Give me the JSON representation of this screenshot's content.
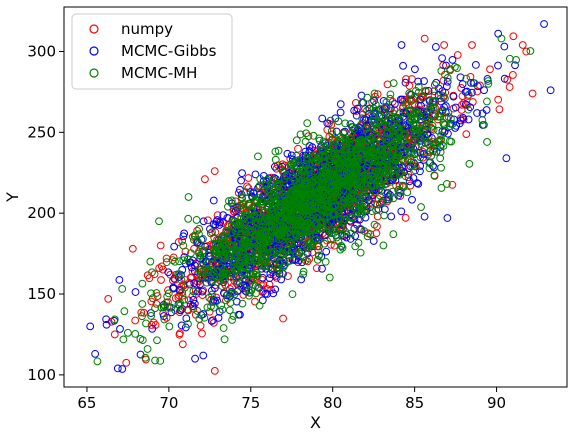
{
  "chart_data": {
    "type": "scatter",
    "title": "",
    "xlabel": "X",
    "ylabel": "Y",
    "xlim": [
      63.6,
      94.3
    ],
    "ylim": [
      92.5,
      327.5
    ],
    "xticks": [
      65,
      70,
      75,
      80,
      85,
      90
    ],
    "yticks": [
      100,
      150,
      200,
      250,
      300
    ],
    "grid": false,
    "legend_position": "top-left",
    "marker": "open-circle",
    "distribution": {
      "mean": [
        79,
        210
      ],
      "std": [
        4.0,
        30.5
      ],
      "correlation": 0.85
    },
    "series": [
      {
        "name": "numpy",
        "color": "#ff0000",
        "sample_points": [
          [
            67.4,
            107.5
          ],
          [
            68.6,
            109.5
          ],
          [
            66.7,
            125
          ],
          [
            66.3,
            147
          ],
          [
            67.8,
            178
          ],
          [
            72.2,
            221
          ],
          [
            88.5,
            304
          ],
          [
            89.6,
            289
          ],
          [
            86.8,
            304
          ],
          [
            91.6,
            304
          ],
          [
            92.2,
            274
          ],
          [
            72.8,
            226
          ],
          [
            90.8,
            278
          ],
          [
            86.6,
            271
          ],
          [
            69.5,
            180
          ]
        ]
      },
      {
        "name": "MCMC-Gibbs",
        "color": "#0000ff",
        "sample_points": [
          [
            65.2,
            130
          ],
          [
            65.5,
            113
          ],
          [
            66.2,
            131
          ],
          [
            72.1,
            112
          ],
          [
            73.1,
            139
          ],
          [
            92.9,
            317
          ],
          [
            93.3,
            276
          ],
          [
            90.1,
            311
          ],
          [
            84.2,
            304
          ],
          [
            90.6,
            234
          ],
          [
            71.6,
            110
          ],
          [
            87.0,
            197
          ],
          [
            82.1,
            240
          ],
          [
            76.0,
            150
          ]
        ]
      },
      {
        "name": "MCMC-MH",
        "color": "#008000",
        "sample_points": [
          [
            67.5,
            126
          ],
          [
            68.7,
            116
          ],
          [
            69.4,
            195
          ],
          [
            73.4,
            122
          ],
          [
            82.3,
            187
          ],
          [
            83.7,
            187
          ],
          [
            90.3,
            308
          ],
          [
            89.5,
            280
          ],
          [
            71.2,
            210
          ],
          [
            86.1,
            244
          ]
        ]
      }
    ]
  }
}
